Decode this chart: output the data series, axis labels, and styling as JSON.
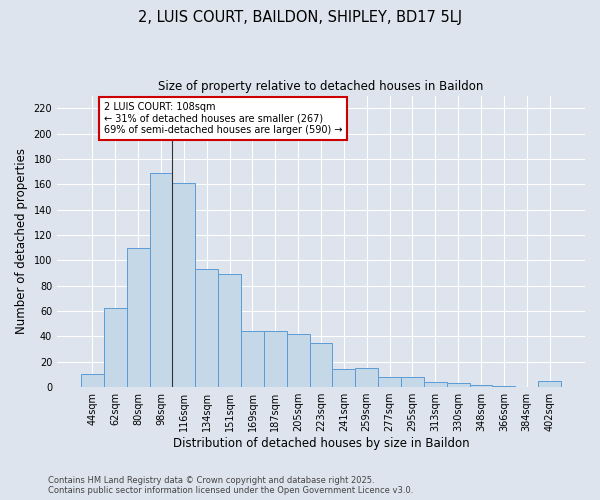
{
  "title": "2, LUIS COURT, BAILDON, SHIPLEY, BD17 5LJ",
  "subtitle": "Size of property relative to detached houses in Baildon",
  "xlabel": "Distribution of detached houses by size in Baildon",
  "ylabel": "Number of detached properties",
  "categories": [
    "44sqm",
    "62sqm",
    "80sqm",
    "98sqm",
    "116sqm",
    "134sqm",
    "151sqm",
    "169sqm",
    "187sqm",
    "205sqm",
    "223sqm",
    "241sqm",
    "259sqm",
    "277sqm",
    "295sqm",
    "313sqm",
    "330sqm",
    "348sqm",
    "366sqm",
    "384sqm",
    "402sqm"
  ],
  "values": [
    10,
    62,
    110,
    169,
    161,
    93,
    89,
    44,
    44,
    42,
    35,
    14,
    15,
    8,
    8,
    4,
    3,
    2,
    1,
    0,
    5
  ],
  "bar_color": "#c5d8e8",
  "bar_edge_color": "#5b9bd5",
  "annotation_text": "2 LUIS COURT: 108sqm\n← 31% of detached houses are smaller (267)\n69% of semi-detached houses are larger (590) →",
  "annotation_box_color": "#ffffff",
  "annotation_box_edge": "#cc0000",
  "vline_x": 3.5,
  "ylim": [
    0,
    230
  ],
  "yticks": [
    0,
    20,
    40,
    60,
    80,
    100,
    120,
    140,
    160,
    180,
    200,
    220
  ],
  "background_color": "#dde4ed",
  "grid_color": "#ffffff",
  "footer": "Contains HM Land Registry data © Crown copyright and database right 2025.\nContains public sector information licensed under the Open Government Licence v3.0."
}
